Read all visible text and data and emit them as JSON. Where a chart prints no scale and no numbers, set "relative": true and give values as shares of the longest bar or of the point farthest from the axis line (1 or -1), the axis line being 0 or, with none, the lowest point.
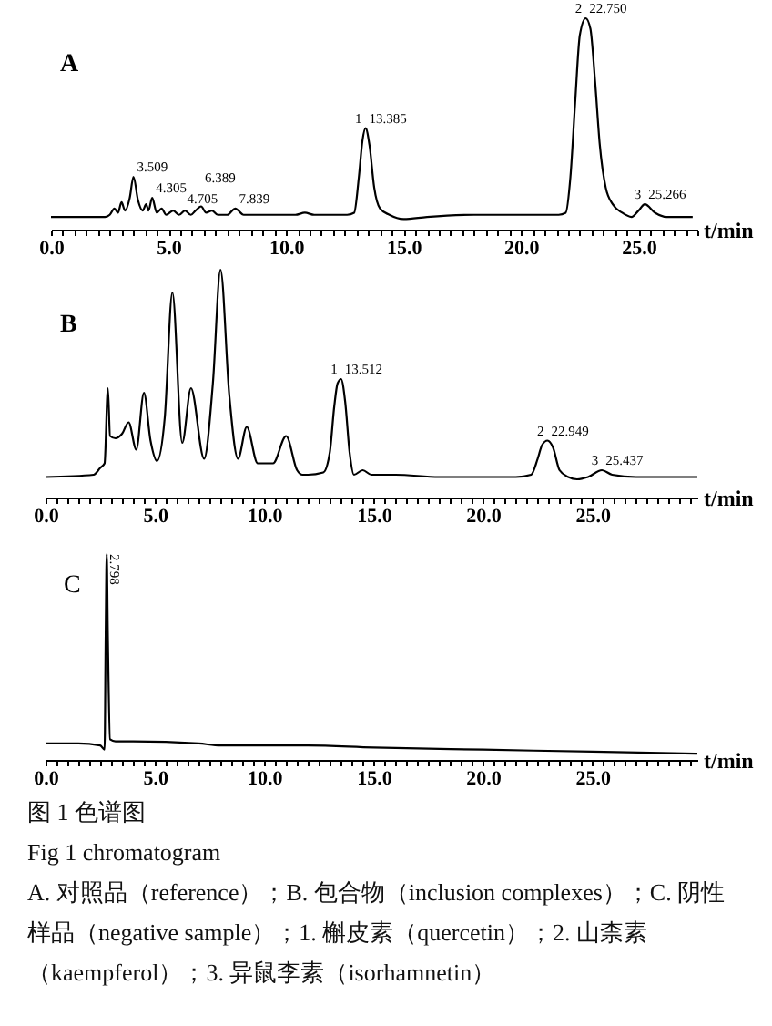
{
  "chart_data": [
    {
      "type": "line",
      "title": "A",
      "xlabel": "t/min",
      "relative": true,
      "color": "#000000",
      "x": [
        0,
        2.3,
        2.5,
        2.7,
        2.85,
        3.0,
        3.15,
        3.35,
        3.509,
        3.7,
        3.9,
        4.05,
        4.15,
        4.305,
        4.5,
        4.705,
        4.9,
        5.2,
        5.45,
        5.7,
        5.95,
        6.15,
        6.389,
        6.6,
        6.85,
        7.1,
        7.5,
        7.839,
        8.2,
        9.5,
        10.4,
        10.8,
        11.2,
        12.6,
        12.9,
        13.1,
        13.25,
        13.385,
        13.55,
        13.75,
        14.0,
        14.4,
        15.0,
        16.0,
        18.0,
        21.6,
        21.9,
        22.1,
        22.3,
        22.5,
        22.75,
        22.95,
        23.15,
        23.35,
        23.6,
        23.9,
        24.3,
        24.7,
        25.0,
        25.266,
        25.7,
        26.2,
        27.3
      ],
      "values": [
        0.06,
        0.06,
        0.07,
        0.1,
        0.08,
        0.13,
        0.09,
        0.15,
        0.25,
        0.14,
        0.09,
        0.12,
        0.09,
        0.15,
        0.08,
        0.1,
        0.07,
        0.09,
        0.07,
        0.09,
        0.07,
        0.09,
        0.11,
        0.08,
        0.09,
        0.07,
        0.07,
        0.1,
        0.07,
        0.07,
        0.07,
        0.08,
        0.07,
        0.07,
        0.08,
        0.25,
        0.42,
        0.48,
        0.4,
        0.2,
        0.1,
        0.07,
        0.05,
        0.06,
        0.07,
        0.07,
        0.08,
        0.25,
        0.6,
        0.92,
        1,
        0.95,
        0.7,
        0.4,
        0.2,
        0.12,
        0.08,
        0.06,
        0.09,
        0.12,
        0.08,
        0.06,
        0.06
      ],
      "xlim": [
        0,
        27.5
      ],
      "xticks": [
        {
          "value": 0,
          "label": "0.0"
        },
        {
          "value": 0.5,
          "label": null
        },
        {
          "value": 1,
          "label": null
        },
        {
          "value": 1.5,
          "label": null
        },
        {
          "value": 2,
          "label": null
        },
        {
          "value": 2.5,
          "label": null
        },
        {
          "value": 3,
          "label": null
        },
        {
          "value": 3.5,
          "label": null
        },
        {
          "value": 4,
          "label": null
        },
        {
          "value": 4.5,
          "label": null
        },
        {
          "value": 5,
          "label": "5.0"
        },
        {
          "value": 5.5,
          "label": null
        },
        {
          "value": 6,
          "label": null
        },
        {
          "value": 6.5,
          "label": null
        },
        {
          "value": 7,
          "label": null
        },
        {
          "value": 7.5,
          "label": null
        },
        {
          "value": 8,
          "label": null
        },
        {
          "value": 8.5,
          "label": null
        },
        {
          "value": 9,
          "label": null
        },
        {
          "value": 9.5,
          "label": null
        },
        {
          "value": 10,
          "label": "10.0"
        },
        {
          "value": 10.5,
          "label": null
        },
        {
          "value": 11,
          "label": null
        },
        {
          "value": 11.5,
          "label": null
        },
        {
          "value": 12,
          "label": null
        },
        {
          "value": 12.5,
          "label": null
        },
        {
          "value": 13,
          "label": null
        },
        {
          "value": 13.5,
          "label": null
        },
        {
          "value": 14,
          "label": null
        },
        {
          "value": 14.5,
          "label": null
        },
        {
          "value": 15,
          "label": "15.0"
        },
        {
          "value": 15.5,
          "label": null
        },
        {
          "value": 16,
          "label": null
        },
        {
          "value": 16.5,
          "label": null
        },
        {
          "value": 17,
          "label": null
        },
        {
          "value": 17.5,
          "label": null
        },
        {
          "value": 18,
          "label": null
        },
        {
          "value": 18.5,
          "label": null
        },
        {
          "value": 19,
          "label": null
        },
        {
          "value": 19.5,
          "label": null
        },
        {
          "value": 20,
          "label": "20.0"
        },
        {
          "value": 20.5,
          "label": null
        },
        {
          "value": 21,
          "label": null
        },
        {
          "value": 21.5,
          "label": null
        },
        {
          "value": 22,
          "label": null
        },
        {
          "value": 22.5,
          "label": null
        },
        {
          "value": 23,
          "label": null
        },
        {
          "value": 23.5,
          "label": null
        },
        {
          "value": 24,
          "label": null
        },
        {
          "value": 24.5,
          "label": null
        },
        {
          "value": 25,
          "label": "25.0"
        },
        {
          "value": 25.5,
          "label": null
        },
        {
          "value": 26,
          "label": null
        },
        {
          "value": 26.5,
          "label": null
        },
        {
          "value": 27,
          "label": null
        },
        {
          "value": 27.5,
          "label": null
        }
      ],
      "annotations": [
        {
          "text": "3.509",
          "x": 3.509,
          "y": 0.25
        },
        {
          "text": "4.305",
          "x": 4.305,
          "y": 0.15
        },
        {
          "text": "4.705",
          "x": 4.705,
          "y": 0.1
        },
        {
          "text": "6.389",
          "x": 6.389,
          "y": 0.11
        },
        {
          "text": "7.839",
          "x": 7.839,
          "y": 0.1
        },
        {
          "text": "1",
          "x": 13.385,
          "y": 0.48
        },
        {
          "text": "13.385",
          "x": 13.385,
          "y": 0.48
        },
        {
          "text": "2",
          "x": 22.75,
          "y": 1
        },
        {
          "text": "22.750",
          "x": 22.75,
          "y": 1
        },
        {
          "text": "3",
          "x": 25.266,
          "y": 0.12
        },
        {
          "text": "25.266",
          "x": 25.266,
          "y": 0.12
        }
      ]
    },
    {
      "type": "line",
      "title": "B",
      "xlabel": "t/min",
      "relative": true,
      "color": "#000000",
      "x": [
        0,
        2.2,
        2.5,
        2.7,
        2.85,
        2.95,
        3.2,
        3.5,
        3.8,
        4.15,
        4.5,
        4.8,
        5.1,
        5.45,
        5.8,
        6.25,
        6.65,
        7.25,
        7.65,
        8.0,
        8.4,
        8.8,
        9.2,
        9.7,
        10.4,
        11.0,
        11.5,
        11.75,
        12.0,
        12.7,
        13.0,
        13.2,
        13.35,
        13.512,
        13.7,
        13.9,
        14.1,
        14.5,
        14.9,
        16.0,
        18.0,
        21.5,
        22.2,
        22.5,
        22.7,
        22.949,
        23.2,
        23.5,
        23.9,
        24.3,
        24.8,
        25.437,
        25.9,
        27.0,
        29.8
      ],
      "values": [
        0.09,
        0.1,
        0.13,
        0.15,
        0.48,
        0.27,
        0.26,
        0.28,
        0.33,
        0.21,
        0.46,
        0.25,
        0.16,
        0.35,
        0.9,
        0.24,
        0.48,
        0.17,
        0.5,
        1,
        0.45,
        0.17,
        0.31,
        0.15,
        0.15,
        0.27,
        0.12,
        0.1,
        0.1,
        0.11,
        0.2,
        0.4,
        0.5,
        0.52,
        0.42,
        0.2,
        0.1,
        0.12,
        0.1,
        0.1,
        0.09,
        0.09,
        0.1,
        0.17,
        0.23,
        0.25,
        0.22,
        0.12,
        0.09,
        0.08,
        0.09,
        0.12,
        0.1,
        0.09,
        0.09
      ],
      "xlim": [
        0,
        29.8
      ],
      "xticks": [
        {
          "value": 0,
          "label": "0.0"
        },
        {
          "value": 0.5,
          "label": null
        },
        {
          "value": 1,
          "label": null
        },
        {
          "value": 1.5,
          "label": null
        },
        {
          "value": 2,
          "label": null
        },
        {
          "value": 2.5,
          "label": null
        },
        {
          "value": 3,
          "label": null
        },
        {
          "value": 3.5,
          "label": null
        },
        {
          "value": 4,
          "label": null
        },
        {
          "value": 4.5,
          "label": null
        },
        {
          "value": 5,
          "label": "5.0"
        },
        {
          "value": 5.5,
          "label": null
        },
        {
          "value": 6,
          "label": null
        },
        {
          "value": 6.5,
          "label": null
        },
        {
          "value": 7,
          "label": null
        },
        {
          "value": 7.5,
          "label": null
        },
        {
          "value": 8,
          "label": null
        },
        {
          "value": 8.5,
          "label": null
        },
        {
          "value": 9,
          "label": null
        },
        {
          "value": 9.5,
          "label": null
        },
        {
          "value": 10,
          "label": "10.0"
        },
        {
          "value": 10.5,
          "label": null
        },
        {
          "value": 11,
          "label": null
        },
        {
          "value": 11.5,
          "label": null
        },
        {
          "value": 12,
          "label": null
        },
        {
          "value": 12.5,
          "label": null
        },
        {
          "value": 13,
          "label": null
        },
        {
          "value": 13.5,
          "label": null
        },
        {
          "value": 14,
          "label": null
        },
        {
          "value": 14.5,
          "label": null
        },
        {
          "value": 15,
          "label": "15.0"
        },
        {
          "value": 15.5,
          "label": null
        },
        {
          "value": 16,
          "label": null
        },
        {
          "value": 16.5,
          "label": null
        },
        {
          "value": 17,
          "label": null
        },
        {
          "value": 17.5,
          "label": null
        },
        {
          "value": 18,
          "label": null
        },
        {
          "value": 18.5,
          "label": null
        },
        {
          "value": 19,
          "label": null
        },
        {
          "value": 19.5,
          "label": null
        },
        {
          "value": 20,
          "label": "20.0"
        },
        {
          "value": 20.5,
          "label": null
        },
        {
          "value": 21,
          "label": null
        },
        {
          "value": 21.5,
          "label": null
        },
        {
          "value": 22,
          "label": null
        },
        {
          "value": 22.5,
          "label": null
        },
        {
          "value": 23,
          "label": null
        },
        {
          "value": 23.5,
          "label": null
        },
        {
          "value": 24,
          "label": null
        },
        {
          "value": 24.5,
          "label": null
        },
        {
          "value": 25,
          "label": "25.0"
        },
        {
          "value": 25.5,
          "label": null
        },
        {
          "value": 26,
          "label": null
        },
        {
          "value": 26.5,
          "label": null
        },
        {
          "value": 27,
          "label": null
        },
        {
          "value": 27.5,
          "label": null
        },
        {
          "value": 28,
          "label": null
        },
        {
          "value": 28.5,
          "label": null
        },
        {
          "value": 29,
          "label": null
        },
        {
          "value": 29.5,
          "label": null
        }
      ],
      "annotations": [
        {
          "text": "1",
          "x": 13.512,
          "y": 0.52
        },
        {
          "text": "13.512",
          "x": 13.512,
          "y": 0.52
        },
        {
          "text": "2",
          "x": 22.949,
          "y": 0.25
        },
        {
          "text": "22.949",
          "x": 22.949,
          "y": 0.25
        },
        {
          "text": "3",
          "x": 25.437,
          "y": 0.12
        },
        {
          "text": "25.437",
          "x": 25.437,
          "y": 0.12
        }
      ]
    },
    {
      "type": "line",
      "title": "C",
      "xlabel": "t/min",
      "relative": true,
      "color": "#000000",
      "x": [
        0,
        1.5,
        2.5,
        2.7,
        2.75,
        2.798,
        2.85,
        2.95,
        3.2,
        4.0,
        7.0,
        8.0,
        12.0,
        15.0,
        20.0,
        25.0,
        29.8
      ],
      "values": [
        0.08,
        0.08,
        0.07,
        0.05,
        0.6,
        1,
        0.6,
        0.1,
        0.09,
        0.09,
        0.08,
        0.07,
        0.07,
        0.06,
        0.05,
        0.04,
        0.03
      ],
      "xlim": [
        0,
        29.8
      ],
      "xticks": [
        {
          "value": 0,
          "label": "0.0"
        },
        {
          "value": 0.5,
          "label": null
        },
        {
          "value": 1,
          "label": null
        },
        {
          "value": 1.5,
          "label": null
        },
        {
          "value": 2,
          "label": null
        },
        {
          "value": 2.5,
          "label": null
        },
        {
          "value": 3,
          "label": null
        },
        {
          "value": 3.5,
          "label": null
        },
        {
          "value": 4,
          "label": null
        },
        {
          "value": 4.5,
          "label": null
        },
        {
          "value": 5,
          "label": "5.0"
        },
        {
          "value": 5.5,
          "label": null
        },
        {
          "value": 6,
          "label": null
        },
        {
          "value": 6.5,
          "label": null
        },
        {
          "value": 7,
          "label": null
        },
        {
          "value": 7.5,
          "label": null
        },
        {
          "value": 8,
          "label": null
        },
        {
          "value": 8.5,
          "label": null
        },
        {
          "value": 9,
          "label": null
        },
        {
          "value": 9.5,
          "label": null
        },
        {
          "value": 10,
          "label": "10.0"
        },
        {
          "value": 10.5,
          "label": null
        },
        {
          "value": 11,
          "label": null
        },
        {
          "value": 11.5,
          "label": null
        },
        {
          "value": 12,
          "label": null
        },
        {
          "value": 12.5,
          "label": null
        },
        {
          "value": 13,
          "label": null
        },
        {
          "value": 13.5,
          "label": null
        },
        {
          "value": 14,
          "label": null
        },
        {
          "value": 14.5,
          "label": null
        },
        {
          "value": 15,
          "label": "15.0"
        },
        {
          "value": 15.5,
          "label": null
        },
        {
          "value": 16,
          "label": null
        },
        {
          "value": 16.5,
          "label": null
        },
        {
          "value": 17,
          "label": null
        },
        {
          "value": 17.5,
          "label": null
        },
        {
          "value": 18,
          "label": null
        },
        {
          "value": 18.5,
          "label": null
        },
        {
          "value": 19,
          "label": null
        },
        {
          "value": 19.5,
          "label": null
        },
        {
          "value": 20,
          "label": "20.0"
        },
        {
          "value": 20.5,
          "label": null
        },
        {
          "value": 21,
          "label": null
        },
        {
          "value": 21.5,
          "label": null
        },
        {
          "value": 22,
          "label": null
        },
        {
          "value": 22.5,
          "label": null
        },
        {
          "value": 23,
          "label": null
        },
        {
          "value": 23.5,
          "label": null
        },
        {
          "value": 24,
          "label": null
        },
        {
          "value": 24.5,
          "label": null
        },
        {
          "value": 25,
          "label": "25.0"
        },
        {
          "value": 25.5,
          "label": null
        },
        {
          "value": 26,
          "label": null
        },
        {
          "value": 26.5,
          "label": null
        },
        {
          "value": 27,
          "label": null
        },
        {
          "value": 27.5,
          "label": null
        },
        {
          "value": 28,
          "label": null
        },
        {
          "value": 28.5,
          "label": null
        },
        {
          "value": 29,
          "label": null
        },
        {
          "value": 29.5,
          "label": null
        }
      ],
      "annotations": [
        {
          "text": "2.798",
          "x": 2.798,
          "y": 1
        },
        "图 1 色谱图",
        "Fig 1 chromatogram",
        "A. 对照品（reference）；B. 包合物（inclusion complexes）；C. 阴性样品（negative sample）；1. 槲皮素（quercetin）；2. 山柰素（kaempferol）；3. 异鼠李素（isorhamnetin）"
      ]
    }
  ]
}
